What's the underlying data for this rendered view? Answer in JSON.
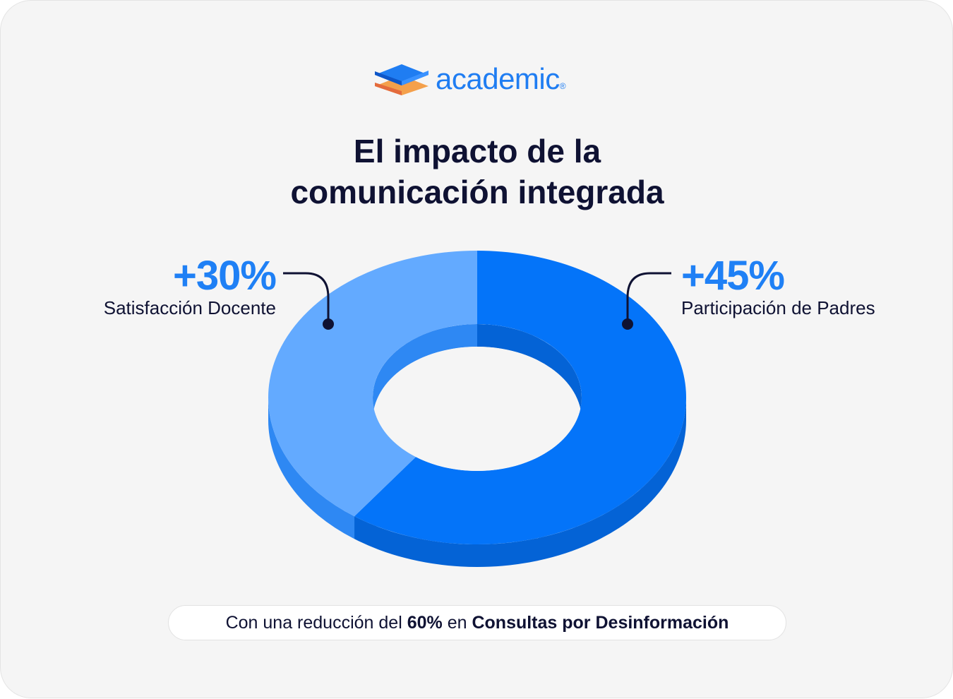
{
  "brand": {
    "name": "academic",
    "registered_mark": "®",
    "logo_icon": "stacked-book-icon"
  },
  "title": {
    "line1": "El impacto de la",
    "line2": "comunicación integrada"
  },
  "colors": {
    "primary": "#0474f9",
    "primary_side": "#0463d6",
    "light": "#63aaff",
    "light_side": "#2e88f3",
    "text": "#0f1233",
    "value_text": "#1f80f5"
  },
  "chart_data": {
    "type": "pie",
    "style": "3d-donut",
    "series": [
      {
        "value_label": "+30%",
        "value": 30,
        "label": "Satisfacción Docente",
        "color": "#63aaff"
      },
      {
        "value_label": "+45%",
        "value": 45,
        "label": "Participación de Padres",
        "color": "#0474f9"
      }
    ]
  },
  "footer": {
    "prefix": "Con una reducción del",
    "highlight_value": "60%",
    "middle": "en",
    "highlight_topic": "Consultas por Desinformación"
  }
}
